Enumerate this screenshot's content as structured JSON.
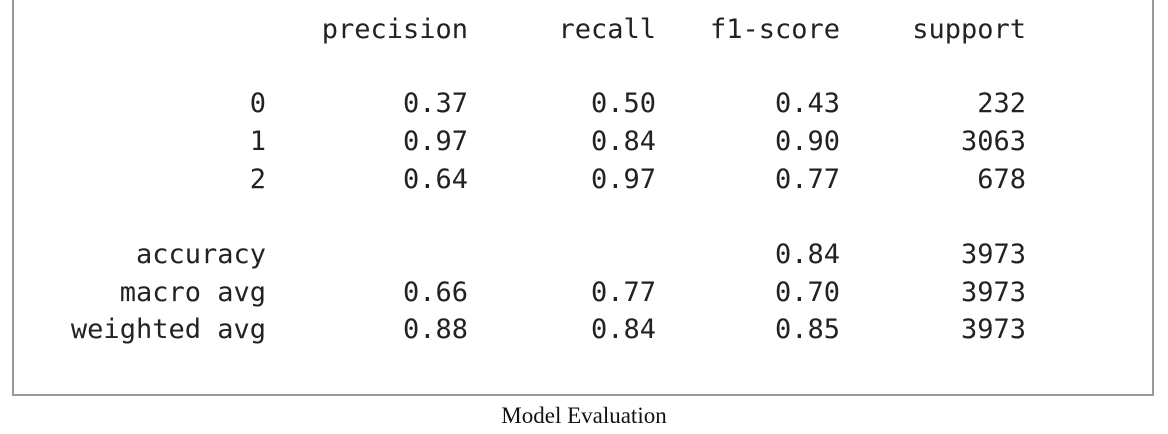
{
  "report": {
    "headers": {
      "label": "",
      "precision": "precision",
      "recall": "recall",
      "f1": "f1-score",
      "support": "support"
    },
    "rows": [
      {
        "label": "0",
        "precision": "0.37",
        "recall": "0.50",
        "f1": "0.43",
        "support": "232"
      },
      {
        "label": "1",
        "precision": "0.97",
        "recall": "0.84",
        "f1": "0.90",
        "support": "3063"
      },
      {
        "label": "2",
        "precision": "0.64",
        "recall": "0.97",
        "f1": "0.77",
        "support": "678"
      }
    ],
    "summary": [
      {
        "label": "accuracy",
        "precision": "",
        "recall": "",
        "f1": "0.84",
        "support": "3973"
      },
      {
        "label": "macro avg",
        "precision": "0.66",
        "recall": "0.77",
        "f1": "0.70",
        "support": "3973"
      },
      {
        "label": "weighted avg",
        "precision": "0.88",
        "recall": "0.84",
        "f1": "0.85",
        "support": "3973"
      }
    ]
  },
  "caption": "Model Evaluation"
}
